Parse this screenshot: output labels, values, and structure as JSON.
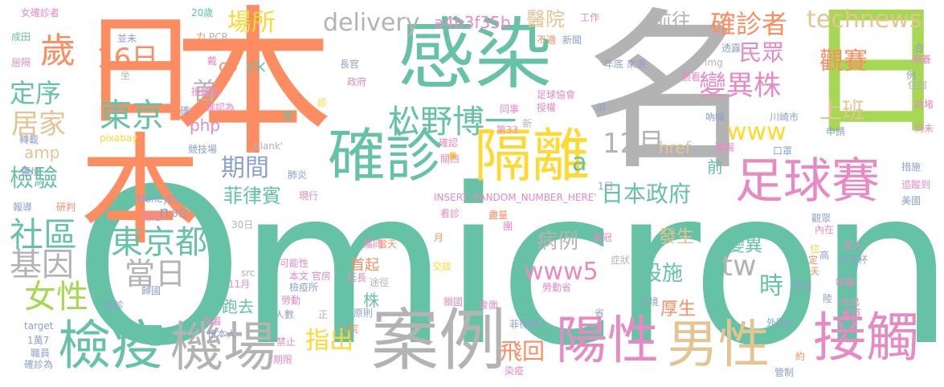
{
  "palette": {
    "green": "#66c2a5",
    "orange": "#fc8d62",
    "gray": "#b3b3b3",
    "pink": "#e78ac3",
    "lime": "#a6d854",
    "yellow": "#ffd92f",
    "tan": "#e5c494",
    "blue": "#8da0cb"
  },
  "words": {
    "omicron": "Omicron",
    "riben": "日本",
    "ming": "名",
    "ri": "日",
    "ganran": "感染",
    "quezhen": "確診",
    "geli": "隔離",
    "anli": "案例",
    "jianyi": "檢疫",
    "jichang": "機場",
    "yangxing": "陽性",
    "nanxing": "男性",
    "jiechu": "接觸",
    "zuqiusai": "足球賽",
    "dongjing": "東京",
    "dongjingdu": "東京都",
    "16ri": "16日",
    "shequ": "社區",
    "jiyin": "基因",
    "nuxing": "女性",
    "jiancha": "檢驗",
    "dingxu": "定序",
    "jujia": "居家",
    "sui": "歲",
    "changsuo": "場所",
    "delivery": "delivery",
    "a4b": "a4b3f35b",
    "yiyuan": "醫院",
    "qianwang": "前往",
    "quezhenzhe": "確診者",
    "minzhong": "民眾",
    "bianyizhu": "變異株",
    "technews": "technews",
    "guansai": "觀賽",
    "shangban": "上班",
    "songye": "松野博一",
    "12yue": "12月",
    "qijian": "期間",
    "feilubin": "菲律賓",
    "ribenzhengfu": "日本政府",
    "www": "www",
    "www5": "www5",
    "tw": "tw",
    "a": "a",
    "shi": "時",
    "dangri": "當日",
    "binglie": "病例",
    "sheshi": "設施",
    "fasheng": "發生",
    "bianyi": "變異",
    "housheng": "厚生",
    "shouqi": "首起",
    "zhichu": "指出",
    "feihui": "飛回",
    "paoqu": "跑去",
    "shou": "首",
    "href": "href",
    "php": "php",
    "cb": "cb",
    "ck": "ck",
    "amp": "amp",
    "qian": "前",
    "n": "n",
    "zhu": "株",
    "s_nuquezhenzhe": "女確診者",
    "s_20sui": "20歲",
    "s_gongzuo": "工作",
    "s_buqie": "不適",
    "s_xinwen": "新聞",
    "s_chengtian": "成田",
    "s_bingwei": "並未",
    "s_li": "力",
    "s_pcr": "PCR",
    "s_dai": "戴",
    "s_juli": "居隔",
    "s_zuo": "坐",
    "s_changguan": "長官",
    "s_zhengfu": "政府",
    "s_niandi": "年底 來源",
    "s_img": "img",
    "s_guankan": "觀看",
    "s_touli": "透露",
    "s_liaoyang": "療養",
    "s_he": "合",
    "s_jiechuzhe": "接觸者",
    "s_zhen": "診",
    "s_que": "確",
    "s_zuqiuxiehui": "足球協會",
    "s_shouyin": "授權",
    "s_xu": "須",
    "s_li2": "例",
    "s_zhusu": "住宿",
    "s_queren": "確認為",
    "s_chen": "稱",
    "s_tongshi": "同事",
    "s_naihan": "吶喊",
    "s_chuanqi": "川崎市",
    "s_fangdu": "防堵",
    "s_zhuanzai": "轉載",
    "s_pixabay": "pixabay",
    "s_quequ": "確認",
    "s_di33": "第33",
    "s_xin": "新",
    "s_shenqing": "申請",
    "s_shangwei": "尚未",
    "s_jingjichang": "競技場",
    "s_blank": "_blank'",
    "s_guanxi": "關西",
    "s_zhichang": "職場",
    "s_kouzhao": "口罩",
    "s_cuoshi": "措施",
    "s_huanjing": "還境",
    "s_feiyan": "肺炎",
    "s_1tian": "1日",
    "s_zhuizong": "追蹤到",
    "s_baodao": "報導",
    "s_yanpan": "研判",
    "s_xianxing": "現行",
    "s_insert": "INSERT_RANDOM_NUMBER_HERE'",
    "s_meiguo": "美國",
    "s_moneydj": "MoneyDJ",
    "s_yinweishi": "因是",
    "s_8ri": "8日",
    "s_kanzhen": "看診",
    "s_30ri": "30日",
    "s_yue": "月",
    "s_jinliang": "盡量",
    "s_tuan": "團",
    "s_guanzhong": "觀眾",
    "s_neizai": "內在",
    "s_xinguan": "新冠",
    "s_tongxing": "攜同",
    "s_dangtian": "當天",
    "s_jiaren": "家人",
    "s_zhengzhuang": "症狀",
    "s_gao": "高",
    "s_tianhuangbei": "天皇杯",
    "s_src": "src",
    "s_kenengxing": "可能性",
    "s_benwen": "本文 官房",
    "s_jiaotan": "交談",
    "s_yinxing": "陰性",
    "s_11yue": "11月",
    "s_laodong": "勞動",
    "s_yanchang": "延長",
    "s_tuzhong": "途徑",
    "s_jianyisuo": "檢疫所",
    "s_laodongsheng": "勞動省",
    "s_guiguo": "歸國",
    "s_ruijing": "入境",
    "s_huxi": "呼籲",
    "s_luo": "陸",
    "s_waichu": "外出",
    "s_yimiao": "疫苗",
    "s_jiuzhen": "就診",
    "s_shenshu": "身着",
    "s_renshu": "人數",
    "s_zheng": "正",
    "s_yuanze": "原則",
    "s_suoguo": "鎖國",
    "s_huimian": "會面",
    "s_sheng": "省",
    "s_target": "target",
    "s_ribenren": "日本人",
    "s_ruyuan": "入院",
    "s_feilubinren": "菲律賓人",
    "s_waiguoren": "外國人",
    "s_1wan7": "1萬7",
    "s_zhiyuan": "職員",
    "s_jinzhi": "禁止",
    "s_yue2": "約",
    "s_quezhenwei": "確診為",
    "s_qixian": "期限",
    "s_ranyi": "染疫",
    "s_guanzhi": "管制",
    "s_ding": "定",
    "s_tian": "天",
    "s_wei": "位"
  }
}
